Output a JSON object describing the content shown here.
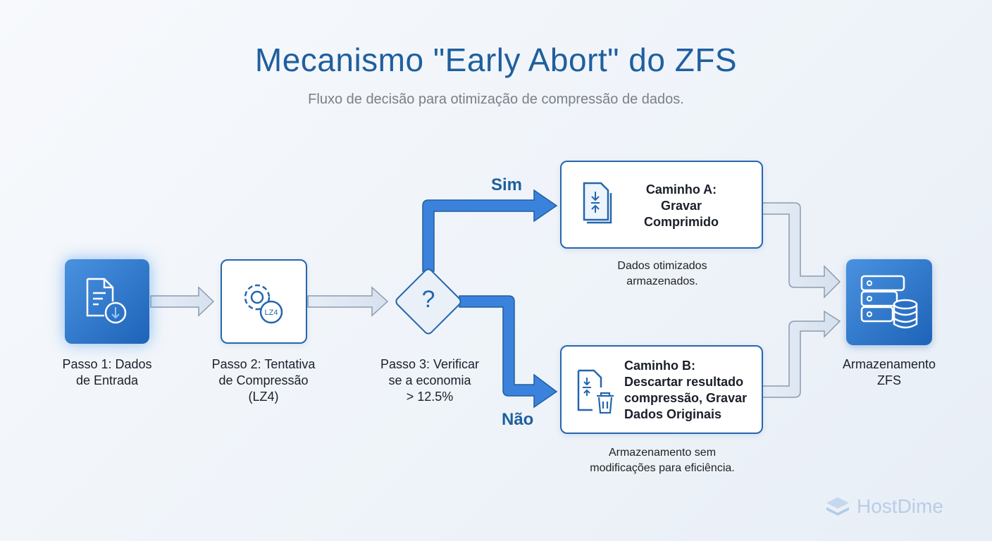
{
  "title": "Mecanismo \"Early Abort\" do ZFS",
  "subtitle": "Fluxo de decisão para otimização de compressão de dados.",
  "steps": [
    {
      "icon": "document-download-icon",
      "label_lines": [
        "Passo 1: Dados",
        "de Entrada"
      ]
    },
    {
      "icon": "gear-lz4-icon",
      "badge": "LZ4",
      "label_lines": [
        "Passo 2: Tentativa",
        "de Compressão",
        "(LZ4)"
      ]
    },
    {
      "icon": "question-icon",
      "symbol": "?",
      "label_lines": [
        "Passo 3: Verificar",
        "se a economia",
        "> 12.5%"
      ]
    }
  ],
  "branches": {
    "yes": "Sim",
    "no": "Não"
  },
  "path_a": {
    "icon": "compress-file-icon",
    "title_lines": [
      "Caminho A:",
      "Gravar",
      "Comprimido"
    ],
    "caption_lines": [
      "Dados otimizados",
      "armazenados."
    ]
  },
  "path_b": {
    "icon": "compress-file-trash-icon",
    "title_lines": [
      "Caminho B:",
      "Descartar resultado",
      "compressão, Gravar",
      "Dados Originais"
    ],
    "caption_lines": [
      "Armazenamento sem",
      "modificações para eficiência."
    ]
  },
  "storage": {
    "icon": "server-database-icon",
    "label_lines": [
      "Armazenamento",
      "ZFS"
    ]
  },
  "logo": {
    "text": "HostDime"
  },
  "colors": {
    "primary": "#1f5f9e",
    "accent_blue": "#2f7ad6",
    "arrow_light": "#dde6f1"
  }
}
